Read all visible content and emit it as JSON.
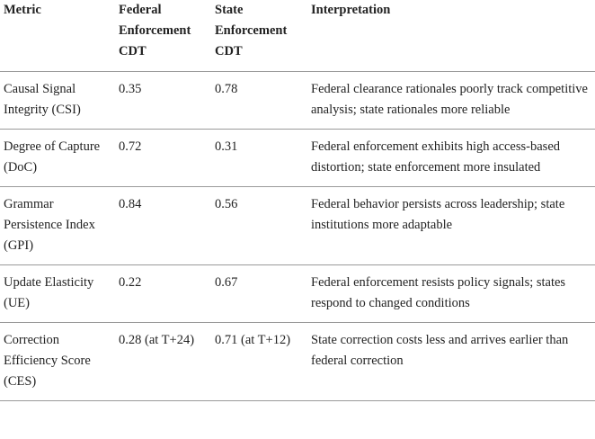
{
  "table": {
    "header": [
      "Metric",
      "Federal Enforcement CDT",
      "State Enforcement CDT",
      "Interpretation"
    ],
    "rows": [
      [
        "Causal Signal Integrity (CSI)",
        0.35,
        0.78,
        "Federal clearance rationales poorly track competitive analysis; state rationales more reliable"
      ],
      [
        "Degree of Capture (DoC)",
        0.72,
        0.31,
        "Federal enforcement exhibits high access-based distortion; state enforcement more insulated"
      ],
      [
        "Grammar Persistence Index (GPI)",
        0.84,
        0.56,
        "Federal behavior persists across leadership; state institutions more adaptable"
      ],
      [
        "Update Elasticity (UE)",
        0.22,
        0.67,
        "Federal enforcement resists policy signals; states respond to changed conditions"
      ],
      [
        "Correction Efficiency Score (CES)",
        "0.28 (at T+24)",
        "0.71 (at T+12)",
        "State correction costs less and arrives earlier than federal correction"
      ]
    ]
  }
}
